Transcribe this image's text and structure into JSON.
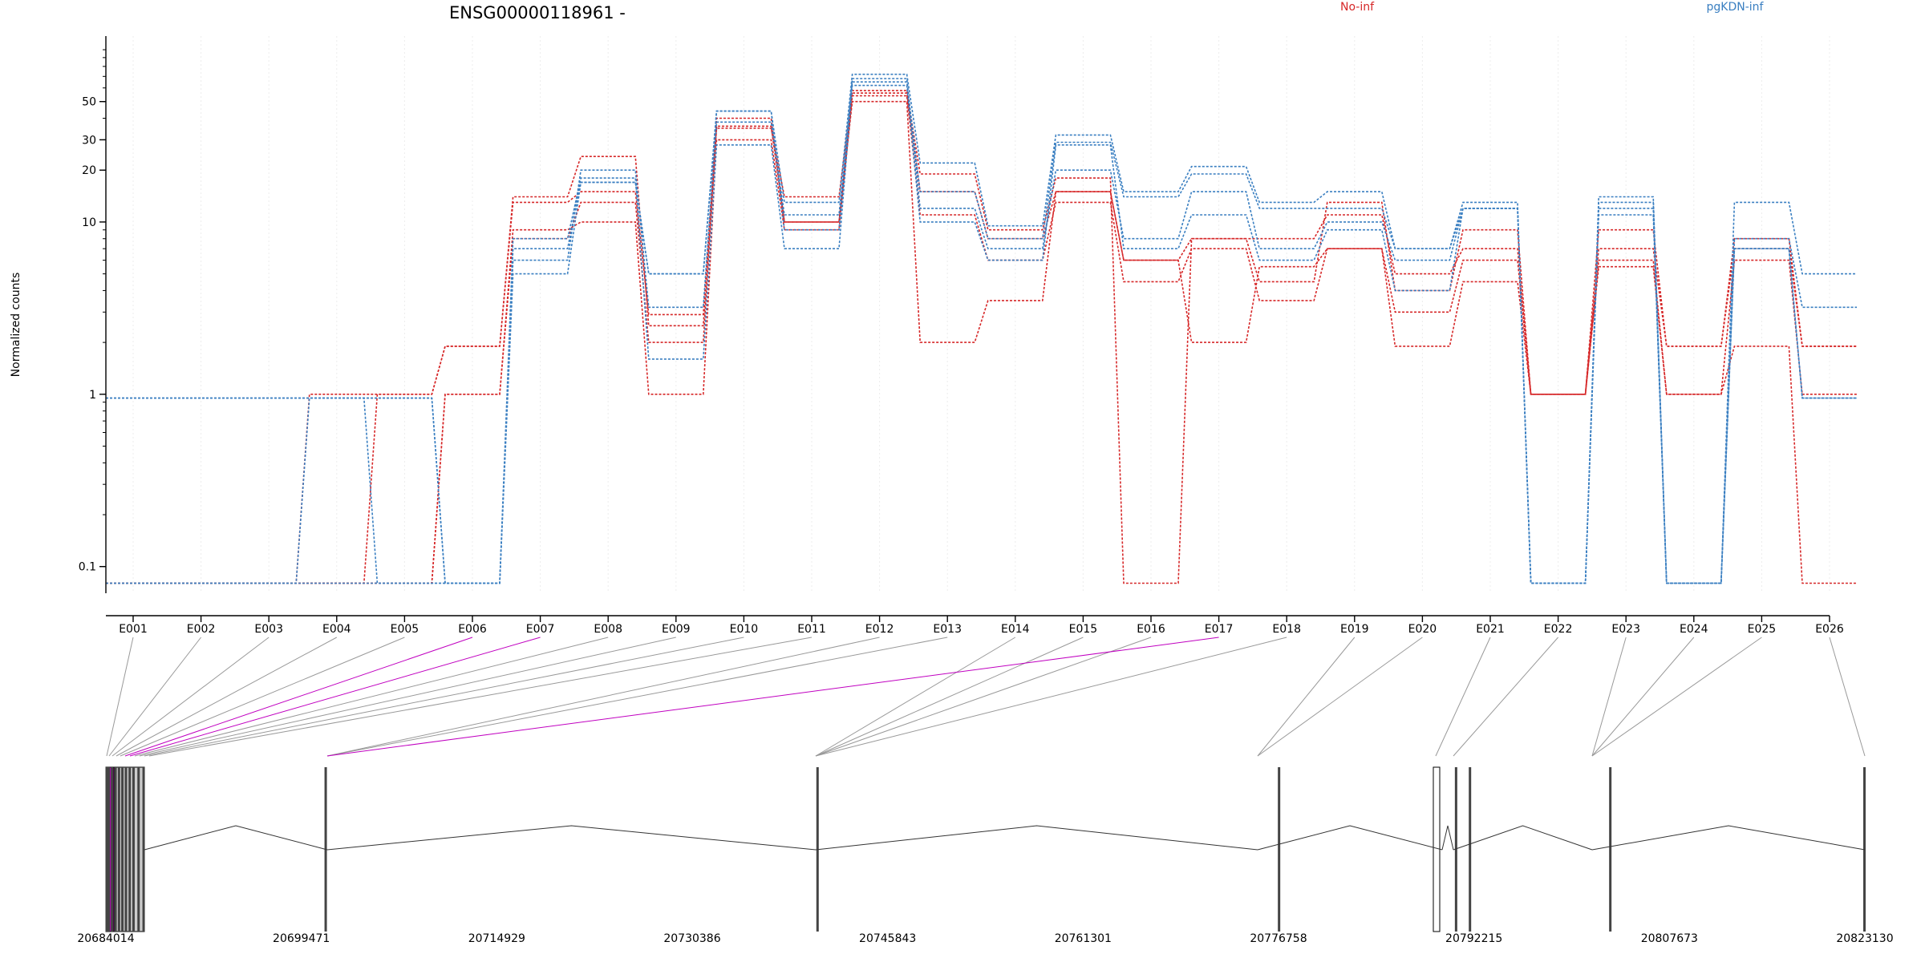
{
  "chart_data": {
    "type": "line",
    "title": "ENSG00000118961 -",
    "ylabel": "Normalized counts",
    "yscale": "log",
    "ylim": [
      0.07,
      120
    ],
    "yticks": [
      {
        "v": 0.1,
        "label": "0.1"
      },
      {
        "v": 1,
        "label": "1"
      },
      {
        "v": 10,
        "label": "10"
      },
      {
        "v": 20,
        "label": "20"
      },
      {
        "v": 30,
        "label": "30"
      },
      {
        "v": 50,
        "label": "50"
      }
    ],
    "legend": [
      {
        "label": "No-inf",
        "color": "#d62728"
      },
      {
        "label": "pgKDN-inf",
        "color": "#3a7fc1"
      }
    ],
    "colors": {
      "no_inf": "#d62728",
      "pgkdn_inf": "#3a7fc1",
      "highlight": "#c000c0",
      "exon": "#cccccc"
    },
    "categories": [
      "E001",
      "E002",
      "E003",
      "E004",
      "E005",
      "E006",
      "E007",
      "E008",
      "E009",
      "E010",
      "E011",
      "E012",
      "E013",
      "E014",
      "E015",
      "E016",
      "E017",
      "E018",
      "E019",
      "E020",
      "E021",
      "E022",
      "E023",
      "E024",
      "E025",
      "E026"
    ],
    "series": [
      {
        "group": "no_inf",
        "values": [
          0.08,
          0.08,
          0.08,
          1.0,
          1.0,
          1.9,
          14,
          24,
          2.5,
          35,
          14,
          58,
          19,
          9,
          18,
          0.08,
          8,
          4.5,
          13,
          4,
          9,
          1,
          9,
          1.9,
          8,
          1.9
        ]
      },
      {
        "group": "no_inf",
        "values": [
          0.08,
          0.08,
          0.08,
          0.08,
          1.0,
          1.9,
          13,
          15,
          2.9,
          40,
          10,
          56,
          15,
          8,
          15,
          6,
          8,
          8,
          11,
          5,
          7,
          1,
          7,
          1.9,
          7,
          1.9
        ]
      },
      {
        "group": "no_inf",
        "values": [
          0.08,
          0.08,
          0.08,
          0.08,
          0.08,
          1.0,
          9,
          10,
          1.0,
          30,
          9,
          54,
          11,
          6,
          13,
          4.5,
          7,
          3.5,
          7,
          3.0,
          6,
          1,
          5.5,
          1.0,
          6,
          1.0
        ]
      },
      {
        "group": "no_inf",
        "values": [
          0.08,
          0.08,
          0.08,
          0.08,
          0.08,
          1.0,
          8,
          13,
          2.0,
          36,
          10,
          50,
          2.0,
          3.5,
          15,
          6,
          2.0,
          5.5,
          7,
          1.9,
          4.5,
          1,
          6,
          1.0,
          1.9,
          0.08
        ]
      },
      {
        "group": "pgkdn_inf",
        "values": [
          0.95,
          0.95,
          0.95,
          0.95,
          0.95,
          0.08,
          5,
          17,
          5,
          44,
          13,
          72,
          22,
          9.5,
          32,
          15,
          21,
          13,
          15,
          7,
          13,
          0.08,
          14,
          0.08,
          13,
          5
        ]
      },
      {
        "group": "pgkdn_inf",
        "values": [
          0.95,
          0.95,
          0.95,
          0.95,
          0.08,
          0.08,
          6,
          20,
          3.2,
          38,
          11,
          65,
          15,
          8,
          29,
          14,
          19,
          12,
          12,
          7,
          12,
          0.08,
          13,
          0.08,
          8,
          3.2
        ]
      },
      {
        "group": "pgkdn_inf",
        "values": [
          0.08,
          0.08,
          0.08,
          0.95,
          0.95,
          0.08,
          7,
          17,
          5,
          44,
          9,
          68,
          12,
          7,
          20,
          8,
          15,
          7,
          10,
          6,
          12,
          0.08,
          12,
          0.08,
          7,
          0.95
        ]
      },
      {
        "group": "pgkdn_inf",
        "values": [
          0.08,
          0.08,
          0.08,
          0.08,
          0.08,
          0.08,
          8,
          18,
          1.6,
          28,
          7,
          62,
          10,
          6,
          28,
          7,
          11,
          6,
          9,
          4,
          12,
          0.08,
          11,
          0.08,
          7,
          0.95
        ]
      }
    ],
    "genomic_ticks": [
      "20684014",
      "20699471",
      "20714929",
      "20730386",
      "20745843",
      "20761301",
      "20776758",
      "20792215",
      "20807673",
      "20823130"
    ],
    "genomic_range": [
      20684014,
      20823130
    ],
    "exon_positions": [
      20684080,
      20684250,
      20684500,
      20684780,
      20685050,
      20685320,
      20685600,
      20685900,
      20686200,
      20686600,
      20687000,
      20701400,
      20740300,
      20776800,
      20790800,
      20791900,
      20803000,
      20823100
    ]
  }
}
